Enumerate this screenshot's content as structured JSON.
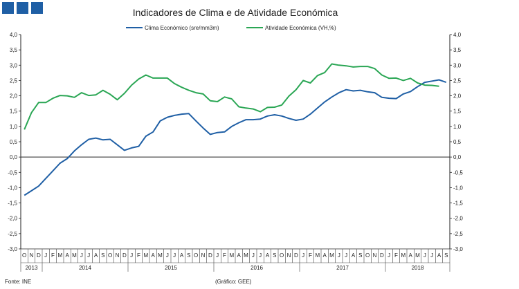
{
  "header": {
    "logo": [
      "INE",
      "brand",
      "mark"
    ]
  },
  "chart_data": {
    "type": "line",
    "title": "Indicadores de Clima e de Atividade Económica",
    "legend_position": "top-center",
    "ylim_left": [
      -3.0,
      4.0
    ],
    "ylim_right": [
      -3.0,
      4.0
    ],
    "y_ticks": [
      "4,0",
      "3,5",
      "3,0",
      "2,5",
      "2,0",
      "1,5",
      "1,0",
      "0,5",
      "0,0",
      "-0,5",
      "-1,0",
      "-1,5",
      "-2,0",
      "-2,5",
      "-3,0"
    ],
    "month_labels": [
      "O",
      "N",
      "D",
      "J",
      "F",
      "M",
      "A",
      "M",
      "J",
      "J",
      "A",
      "S",
      "O",
      "N",
      "D",
      "J",
      "F",
      "M",
      "A",
      "M",
      "J",
      "J",
      "A",
      "S",
      "O",
      "N",
      "D",
      "J",
      "F",
      "M",
      "A",
      "M",
      "J",
      "J",
      "A",
      "S",
      "O",
      "N",
      "D",
      "J",
      "F",
      "M",
      "A",
      "M",
      "J",
      "J",
      "A",
      "S",
      "O",
      "N",
      "D",
      "J",
      "F",
      "M",
      "A",
      "M",
      "J",
      "J",
      "A",
      "S"
    ],
    "year_labels": [
      {
        "label": "2013",
        "start": 0,
        "end": 2
      },
      {
        "label": "2014",
        "start": 3,
        "end": 14
      },
      {
        "label": "2015",
        "start": 15,
        "end": 26
      },
      {
        "label": "2016",
        "start": 27,
        "end": 38
      },
      {
        "label": "2017",
        "start": 39,
        "end": 50
      },
      {
        "label": "2018",
        "start": 51,
        "end": 59
      }
    ],
    "series": [
      {
        "name": "Clima Económico (sre/mm3m)",
        "color": "#1f5fa5",
        "values": [
          -1.25,
          -1.1,
          -0.95,
          -0.7,
          -0.45,
          -0.2,
          -0.05,
          0.2,
          0.4,
          0.58,
          0.62,
          0.56,
          0.58,
          0.4,
          0.22,
          0.3,
          0.35,
          0.68,
          0.82,
          1.18,
          1.3,
          1.36,
          1.4,
          1.42,
          1.18,
          0.95,
          0.74,
          0.8,
          0.82,
          1.0,
          1.12,
          1.22,
          1.22,
          1.24,
          1.34,
          1.38,
          1.34,
          1.26,
          1.2,
          1.24,
          1.4,
          1.6,
          1.8,
          1.96,
          2.1,
          2.2,
          2.16,
          2.18,
          2.13,
          2.1,
          1.95,
          1.92,
          1.91,
          2.06,
          2.14,
          2.3,
          2.44,
          2.48,
          2.52,
          2.44
        ]
      },
      {
        "name": "Atividade Económica (VH,%)",
        "color": "#2aa654",
        "values": [
          0.9,
          1.45,
          1.78,
          1.78,
          1.92,
          2.01,
          2.0,
          1.95,
          2.1,
          2.01,
          2.03,
          2.18,
          2.05,
          1.87,
          2.08,
          2.35,
          2.55,
          2.68,
          2.58,
          2.58,
          2.58,
          2.4,
          2.28,
          2.18,
          2.1,
          2.06,
          1.84,
          1.81,
          1.96,
          1.9,
          1.64,
          1.6,
          1.57,
          1.48,
          1.62,
          1.63,
          1.7,
          1.99,
          2.2,
          2.5,
          2.42,
          2.66,
          2.76,
          3.04,
          3.0,
          2.98,
          2.94,
          2.96,
          2.96,
          2.89,
          2.68,
          2.57,
          2.58,
          2.5,
          2.57,
          2.42,
          2.35,
          2.34,
          2.31
        ]
      }
    ]
  },
  "footer": {
    "source": "Fonte: INE",
    "credit": "(Gráfico: GEE)"
  }
}
